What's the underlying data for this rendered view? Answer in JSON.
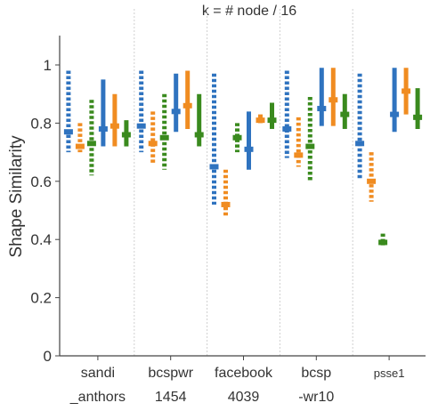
{
  "chart_data": {
    "type": "box",
    "title": "k = # node / 16",
    "ylabel": "Shape Similarity",
    "ylim": [
      0,
      1.1
    ],
    "yticks": [
      "0",
      "0.2",
      "0.4",
      "0.6",
      "0.8",
      "1"
    ],
    "grid": false,
    "category_separators": true,
    "categories": [
      {
        "lines": [
          "sandi",
          "_anthors"
        ]
      },
      {
        "lines": [
          "bcspwr",
          "1454"
        ]
      },
      {
        "lines": [
          "facebook",
          "4039"
        ]
      },
      {
        "lines": [
          "bcsp",
          "-wr10"
        ]
      },
      {
        "lines": [
          "psse1"
        ],
        "small": true
      }
    ],
    "series": [
      {
        "color": "#2f73bf",
        "dashed": true,
        "ranges": [
          [
            0.7,
            0.98,
            0.77
          ],
          [
            0.7,
            0.98,
            0.79
          ],
          [
            0.52,
            0.97,
            0.65
          ],
          [
            0.68,
            0.98,
            0.78
          ],
          [
            0.61,
            0.97,
            0.73
          ]
        ]
      },
      {
        "color": "#f08c21",
        "dashed": true,
        "ranges": [
          [
            0.7,
            0.8,
            0.72
          ],
          [
            0.66,
            0.84,
            0.73
          ],
          [
            0.48,
            0.64,
            0.52
          ],
          [
            0.65,
            0.82,
            0.69
          ],
          [
            0.53,
            0.7,
            0.6
          ]
        ]
      },
      {
        "color": "#3a8a1e",
        "dashed": true,
        "ranges": [
          [
            0.62,
            0.88,
            0.73
          ],
          [
            0.64,
            0.9,
            0.75
          ],
          [
            0.7,
            0.8,
            0.75
          ],
          [
            0.6,
            0.89,
            0.72
          ],
          [
            0.38,
            0.42,
            0.39
          ]
        ]
      },
      {
        "color": "#2f73bf",
        "dashed": false,
        "ranges": [
          [
            0.72,
            0.95,
            0.78
          ],
          [
            0.77,
            0.97,
            0.84
          ],
          [
            0.64,
            0.84,
            0.71
          ],
          [
            0.79,
            0.99,
            0.85
          ],
          [
            0.77,
            0.99,
            0.83
          ]
        ]
      },
      {
        "color": "#f08c21",
        "dashed": false,
        "ranges": [
          [
            0.72,
            0.9,
            0.79
          ],
          [
            0.78,
            0.98,
            0.86
          ],
          [
            0.8,
            0.83,
            0.81
          ],
          [
            0.79,
            0.99,
            0.88
          ],
          [
            0.83,
            0.99,
            0.91
          ]
        ]
      },
      {
        "color": "#3a8a1e",
        "dashed": false,
        "ranges": [
          [
            0.72,
            0.81,
            0.76
          ],
          [
            0.72,
            0.9,
            0.76
          ],
          [
            0.78,
            0.87,
            0.81
          ],
          [
            0.78,
            0.9,
            0.83
          ],
          [
            0.78,
            0.92,
            0.82
          ]
        ]
      }
    ]
  }
}
